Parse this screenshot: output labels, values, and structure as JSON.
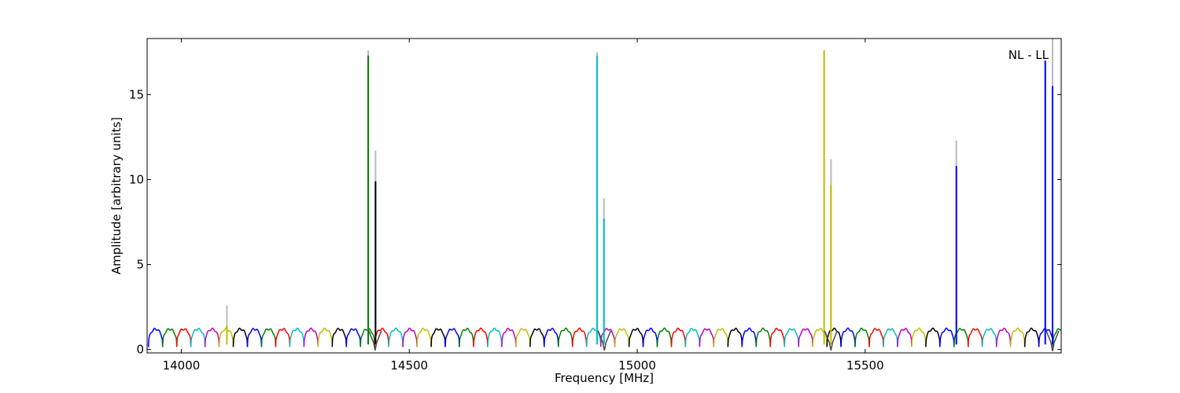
{
  "chart_data": {
    "type": "line",
    "annotation": "NL - LL",
    "xlabel": "Frequency [MHz]",
    "ylabel": "Amplitude [arbitrary units]",
    "xlim": [
      13925,
      15930
    ],
    "ylim": [
      -0.2,
      18.3
    ],
    "x_ticks": [
      14000,
      14500,
      15000,
      15500
    ],
    "y_ticks": [
      0,
      5,
      10,
      15
    ],
    "grid": false,
    "legend": "none",
    "colors": [
      "#0000ff",
      "#008000",
      "#ff0000",
      "#00bfbf",
      "#bf00bf",
      "#bfbf00",
      "#000000"
    ],
    "peak_shadow_color": "#bbbbbb",
    "baseline": {
      "period_mhz": 31,
      "start_mhz": 13928,
      "level_high": 1.2,
      "level_low": 0.15
    },
    "peaks": [
      {
        "x": 14100,
        "y": 1.4,
        "color": "#bfbf00",
        "shadow_y": 2.6
      },
      {
        "x": 14410,
        "y": 17.3,
        "color": "#008000",
        "shadow_y": 17.6
      },
      {
        "x": 14426,
        "y": 9.9,
        "color": "#000000",
        "shadow_y": 11.7
      },
      {
        "x": 14912,
        "y": 17.3,
        "color": "#00bfbf",
        "shadow_y": 17.5
      },
      {
        "x": 14927,
        "y": 7.7,
        "color": "#00bfbf",
        "shadow_y": 8.9
      },
      {
        "x": 15410,
        "y": 17.6,
        "color": "#bfbf00",
        "shadow_y": 17.6
      },
      {
        "x": 15425,
        "y": 9.7,
        "color": "#bfbf00",
        "shadow_y": 11.2
      },
      {
        "x": 15700,
        "y": 10.8,
        "color": "#0000ff",
        "shadow_y": 12.3
      },
      {
        "x": 15895,
        "y": 17.0,
        "color": "#0000ff",
        "shadow_y": 17.0
      },
      {
        "x": 15911,
        "y": 15.5,
        "color": "#0000ff",
        "shadow_y": 18.3
      }
    ],
    "dips": [
      {
        "x": 14425,
        "y": -0.05
      },
      {
        "x": 14928,
        "y": -0.05
      },
      {
        "x": 15425,
        "y": -0.05
      },
      {
        "x": 15911,
        "y": -0.1
      }
    ]
  }
}
